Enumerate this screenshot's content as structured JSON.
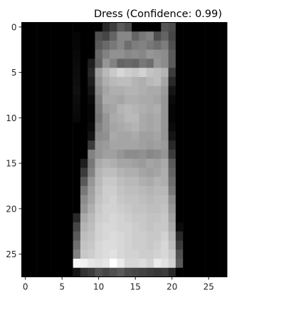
{
  "chart_data": {
    "type": "heatmap",
    "title": "Dress (Confidence: 0.99)",
    "colormap": "gray",
    "value_range": [
      0,
      255
    ],
    "grid": false,
    "xlim": [
      -0.5,
      27.5
    ],
    "ylim": [
      27.5,
      -0.5
    ],
    "x_ticks": [
      0,
      5,
      10,
      15,
      20,
      25
    ],
    "y_ticks": [
      0,
      5,
      10,
      15,
      20,
      25
    ],
    "x_tick_labels": [
      "0",
      "5",
      "10",
      "15",
      "20",
      "25"
    ],
    "y_tick_labels": [
      "0",
      "5",
      "10",
      "15",
      "20",
      "25"
    ],
    "shape": [
      28,
      28
    ],
    "values": [
      [
        0,
        0,
        0,
        0,
        0,
        0,
        0,
        0,
        0,
        0,
        0,
        40,
        60,
        90,
        75,
        0,
        0,
        0,
        0,
        85,
        75,
        0,
        0,
        0,
        0,
        0,
        0,
        0
      ],
      [
        0,
        0,
        0,
        0,
        0,
        0,
        0,
        4,
        0,
        0,
        80,
        70,
        100,
        135,
        135,
        100,
        120,
        130,
        80,
        100,
        70,
        0,
        0,
        0,
        0,
        0,
        0,
        0
      ],
      [
        0,
        0,
        0,
        0,
        0,
        0,
        0,
        6,
        0,
        0,
        90,
        105,
        120,
        135,
        110,
        125,
        130,
        120,
        110,
        125,
        80,
        0,
        0,
        0,
        0,
        0,
        0,
        0
      ],
      [
        0,
        0,
        0,
        0,
        0,
        0,
        0,
        8,
        0,
        0,
        105,
        130,
        145,
        145,
        135,
        140,
        135,
        150,
        145,
        140,
        90,
        0,
        0,
        0,
        0,
        0,
        0,
        0
      ],
      [
        0,
        0,
        0,
        0,
        0,
        0,
        0,
        10,
        0,
        30,
        100,
        150,
        130,
        100,
        105,
        100,
        120,
        110,
        150,
        140,
        90,
        0,
        0,
        0,
        0,
        0,
        0,
        0
      ],
      [
        0,
        0,
        0,
        0,
        0,
        0,
        0,
        12,
        0,
        40,
        160,
        185,
        200,
        215,
        205,
        200,
        210,
        195,
        190,
        180,
        60,
        0,
        0,
        0,
        0,
        0,
        0,
        0
      ],
      [
        0,
        0,
        0,
        0,
        0,
        0,
        0,
        14,
        0,
        30,
        150,
        175,
        185,
        190,
        190,
        180,
        175,
        185,
        190,
        165,
        40,
        0,
        0,
        0,
        0,
        0,
        0,
        0
      ],
      [
        0,
        0,
        0,
        0,
        0,
        0,
        0,
        16,
        0,
        20,
        140,
        165,
        175,
        175,
        180,
        180,
        175,
        170,
        170,
        155,
        20,
        0,
        0,
        0,
        0,
        0,
        0,
        0
      ],
      [
        0,
        0,
        0,
        0,
        0,
        0,
        0,
        12,
        0,
        10,
        130,
        170,
        170,
        165,
        175,
        175,
        170,
        170,
        165,
        150,
        10,
        0,
        0,
        0,
        0,
        0,
        0,
        0
      ],
      [
        0,
        0,
        0,
        0,
        0,
        0,
        0,
        10,
        0,
        5,
        125,
        160,
        165,
        180,
        185,
        180,
        175,
        170,
        175,
        150,
        5,
        0,
        0,
        0,
        0,
        0,
        0,
        0
      ],
      [
        0,
        0,
        0,
        0,
        0,
        0,
        0,
        8,
        0,
        5,
        120,
        150,
        170,
        175,
        185,
        185,
        170,
        165,
        170,
        150,
        5,
        0,
        0,
        0,
        0,
        0,
        0,
        0
      ],
      [
        0,
        0,
        0,
        0,
        0,
        0,
        0,
        0,
        0,
        10,
        130,
        150,
        165,
        170,
        175,
        180,
        170,
        165,
        170,
        150,
        10,
        0,
        0,
        0,
        0,
        0,
        0,
        0
      ],
      [
        0,
        0,
        0,
        0,
        0,
        0,
        0,
        0,
        0,
        20,
        140,
        145,
        170,
        165,
        165,
        170,
        160,
        160,
        165,
        150,
        20,
        0,
        0,
        0,
        0,
        0,
        0,
        0
      ],
      [
        0,
        0,
        0,
        0,
        0,
        0,
        0,
        0,
        0,
        60,
        150,
        155,
        165,
        165,
        165,
        165,
        160,
        155,
        160,
        155,
        40,
        0,
        0,
        0,
        0,
        0,
        0,
        0
      ],
      [
        0,
        0,
        0,
        0,
        0,
        0,
        0,
        0,
        0,
        130,
        150,
        160,
        160,
        150,
        140,
        140,
        145,
        135,
        140,
        150,
        60,
        0,
        0,
        0,
        0,
        0,
        0,
        0
      ],
      [
        0,
        0,
        0,
        0,
        0,
        0,
        0,
        0,
        30,
        120,
        170,
        180,
        175,
        165,
        165,
        160,
        155,
        165,
        160,
        170,
        90,
        0,
        0,
        0,
        0,
        0,
        0,
        0
      ],
      [
        0,
        0,
        0,
        0,
        0,
        0,
        0,
        0,
        60,
        130,
        180,
        190,
        190,
        180,
        175,
        175,
        165,
        160,
        165,
        175,
        100,
        0,
        0,
        0,
        0,
        0,
        0,
        0
      ],
      [
        0,
        0,
        0,
        0,
        0,
        0,
        0,
        0,
        90,
        150,
        185,
        200,
        200,
        190,
        185,
        185,
        175,
        170,
        180,
        175,
        110,
        0,
        0,
        0,
        0,
        0,
        0,
        0
      ],
      [
        0,
        0,
        0,
        0,
        0,
        0,
        0,
        0,
        120,
        160,
        190,
        205,
        205,
        195,
        190,
        190,
        185,
        180,
        185,
        185,
        120,
        0,
        0,
        0,
        0,
        0,
        0,
        0
      ],
      [
        0,
        0,
        0,
        0,
        0,
        0,
        0,
        0,
        140,
        165,
        195,
        205,
        210,
        200,
        195,
        195,
        190,
        185,
        190,
        190,
        140,
        0,
        0,
        0,
        0,
        0,
        0,
        0
      ],
      [
        0,
        0,
        0,
        0,
        0,
        0,
        0,
        0,
        150,
        175,
        200,
        210,
        210,
        205,
        200,
        195,
        195,
        190,
        190,
        195,
        150,
        0,
        0,
        0,
        0,
        0,
        0,
        0
      ],
      [
        0,
        0,
        0,
        0,
        0,
        0,
        0,
        40,
        170,
        185,
        205,
        210,
        215,
        210,
        205,
        200,
        200,
        195,
        195,
        200,
        160,
        0,
        0,
        0,
        0,
        0,
        0,
        0
      ],
      [
        0,
        0,
        0,
        0,
        0,
        0,
        0,
        70,
        180,
        190,
        210,
        215,
        215,
        210,
        210,
        205,
        200,
        195,
        200,
        200,
        170,
        10,
        0,
        0,
        0,
        0,
        0,
        0
      ],
      [
        0,
        0,
        0,
        0,
        0,
        0,
        0,
        90,
        190,
        195,
        210,
        215,
        220,
        215,
        210,
        205,
        205,
        200,
        200,
        210,
        180,
        40,
        0,
        0,
        0,
        0,
        0,
        0
      ],
      [
        0,
        0,
        0,
        0,
        0,
        0,
        0,
        110,
        195,
        200,
        215,
        220,
        220,
        215,
        210,
        205,
        205,
        200,
        205,
        215,
        190,
        60,
        0,
        0,
        0,
        0,
        0,
        0
      ],
      [
        0,
        0,
        0,
        0,
        0,
        0,
        0,
        130,
        200,
        205,
        215,
        220,
        225,
        215,
        210,
        210,
        205,
        205,
        210,
        215,
        200,
        80,
        0,
        0,
        0,
        0,
        0,
        0
      ],
      [
        0,
        0,
        0,
        0,
        0,
        0,
        0,
        245,
        240,
        230,
        225,
        230,
        255,
        235,
        215,
        215,
        220,
        210,
        235,
        225,
        210,
        90,
        0,
        0,
        0,
        0,
        0,
        0
      ],
      [
        0,
        0,
        0,
        0,
        0,
        0,
        0,
        20,
        50,
        60,
        80,
        70,
        80,
        90,
        75,
        70,
        65,
        60,
        55,
        60,
        40,
        0,
        0,
        0,
        0,
        0,
        0,
        0
      ]
    ]
  }
}
